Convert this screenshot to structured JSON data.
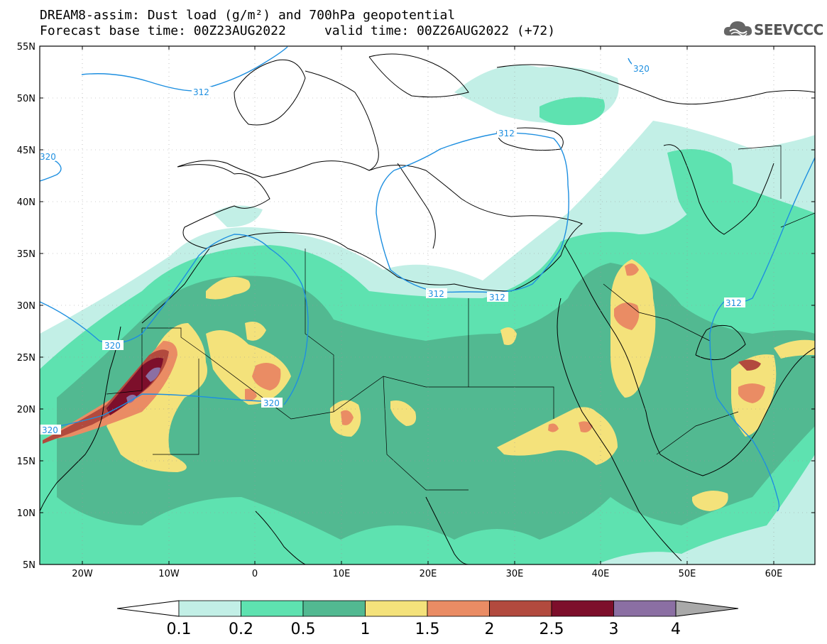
{
  "title": {
    "line1": "DREAM8-assim: Dust load (g/m²) and 700hPa geopotential",
    "line2": "Forecast base time: 00Z23AUG2022     valid time: 00Z26AUG2022 (+72)"
  },
  "logo": {
    "text": "SEEVCCC",
    "icon": "cloud-logo-icon"
  },
  "map": {
    "lat_labels": [
      "55N",
      "50N",
      "45N",
      "40N",
      "35N",
      "30N",
      "25N",
      "20N",
      "15N",
      "10N",
      "5N"
    ],
    "lon_labels": [
      "20W",
      "10W",
      "0",
      "10E",
      "20E",
      "30E",
      "40E",
      "50E",
      "60E"
    ],
    "contour_labels": [
      {
        "text": "312",
        "id": "c312a"
      },
      {
        "text": "320",
        "id": "c320a"
      },
      {
        "text": "312",
        "id": "c312b"
      },
      {
        "text": "312",
        "id": "c312c"
      },
      {
        "text": "312",
        "id": "c312d"
      },
      {
        "text": "320",
        "id": "c320b"
      },
      {
        "text": "312",
        "id": "c312e"
      },
      {
        "text": "320",
        "id": "c320c"
      },
      {
        "text": "320",
        "id": "c320d"
      },
      {
        "text": "320",
        "id": "c320e"
      }
    ],
    "colors": {
      "c01": "#c2efe6",
      "c02": "#5ee2b0",
      "c05": "#52b991",
      "c1": "#f4e27b",
      "c15": "#ea8c64",
      "c2": "#b24a3e",
      "c25": "#7d0f2b",
      "c3": "#8b6fa3",
      "contour": "#1e8fe0"
    }
  },
  "colorbar": {
    "labels": [
      "0.1",
      "0.2",
      "0.5",
      "1",
      "1.5",
      "2",
      "2.5",
      "3",
      "4"
    ],
    "colors": [
      "#c2efe6",
      "#5ee2b0",
      "#52b991",
      "#f4e27b",
      "#ea8c64",
      "#b24a3e",
      "#7d0f2b",
      "#8b6fa3"
    ],
    "low_color": "#ffffff",
    "high_color": "#a9a9a9"
  }
}
